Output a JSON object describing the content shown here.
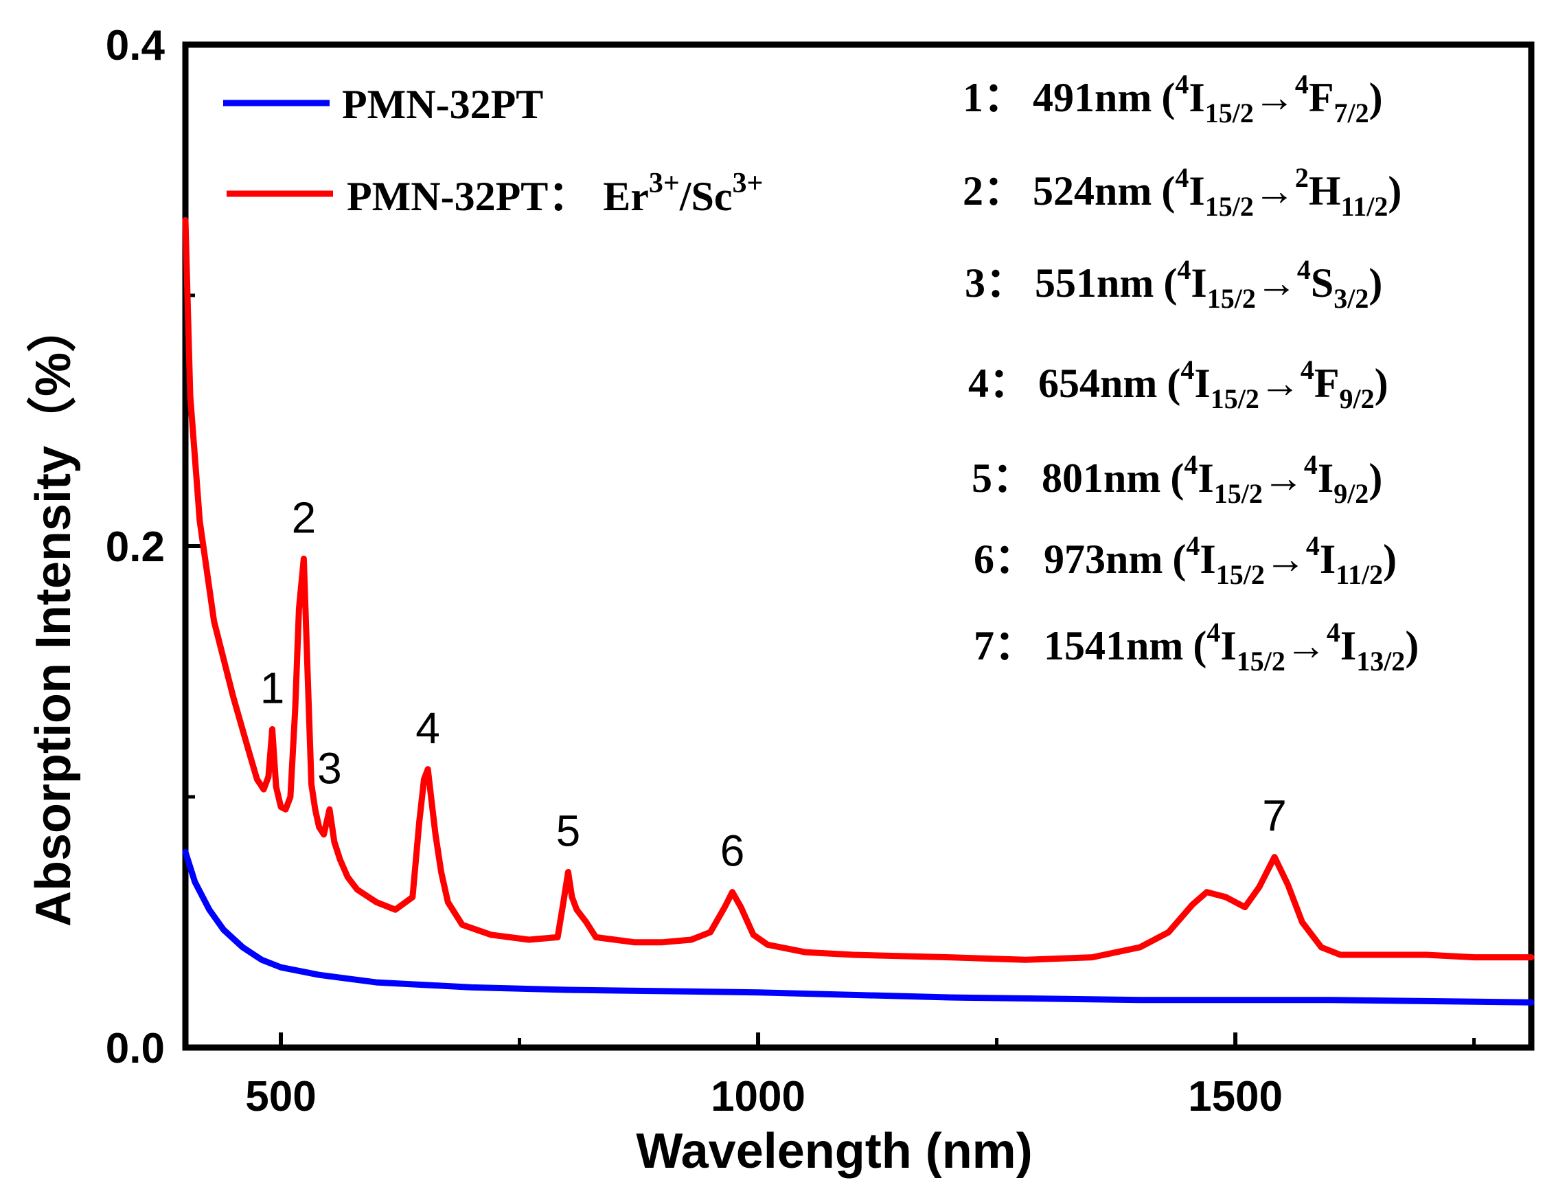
{
  "chart_data": {
    "type": "line",
    "xlabel": "Wavelength (nm)",
    "ylabel": "Absorption Intensity（%）",
    "xlim": [
      400,
      1810
    ],
    "ylim": [
      0,
      0.4
    ],
    "xticks": [
      500,
      1000,
      1500
    ],
    "xticklabels": [
      "500",
      "1000",
      "1500"
    ],
    "yticks": [
      0,
      0.2,
      0.4
    ],
    "yticklabels": [
      "0.0",
      "0.2",
      "0.4"
    ],
    "grid": false,
    "legend_position": "top-left",
    "series": [
      {
        "name": "PMN-32PT",
        "color": "#0000ff",
        "x": [
          400,
          410,
          425,
          440,
          460,
          480,
          500,
          540,
          600,
          700,
          800,
          1000,
          1200,
          1400,
          1600,
          1810
        ],
        "y": [
          0.078,
          0.066,
          0.055,
          0.047,
          0.04,
          0.035,
          0.032,
          0.029,
          0.026,
          0.024,
          0.023,
          0.022,
          0.02,
          0.019,
          0.019,
          0.018
        ]
      },
      {
        "name": "PMN-32PT：Er3+/Sc3+",
        "color": "#ff0000",
        "x": [
          400,
          405,
          415,
          430,
          450,
          465,
          475,
          482,
          487,
          491,
          495,
          500,
          505,
          510,
          515,
          519,
          524,
          528,
          532,
          536,
          540,
          545,
          551,
          556,
          562,
          570,
          580,
          600,
          620,
          638,
          645,
          650,
          654,
          658,
          662,
          668,
          675,
          690,
          720,
          760,
          790,
          796,
          801,
          805,
          810,
          820,
          830,
          850,
          870,
          900,
          930,
          950,
          965,
          973,
          982,
          995,
          1010,
          1050,
          1100,
          1200,
          1280,
          1350,
          1400,
          1430,
          1455,
          1470,
          1480,
          1490,
          1500,
          1510,
          1525,
          1541,
          1555,
          1570,
          1590,
          1610,
          1650,
          1700,
          1750,
          1810
        ],
        "y": [
          0.33,
          0.26,
          0.21,
          0.17,
          0.14,
          0.12,
          0.107,
          0.103,
          0.108,
          0.127,
          0.104,
          0.096,
          0.095,
          0.1,
          0.135,
          0.175,
          0.195,
          0.15,
          0.105,
          0.095,
          0.088,
          0.085,
          0.095,
          0.082,
          0.075,
          0.068,
          0.063,
          0.058,
          0.055,
          0.06,
          0.09,
          0.107,
          0.111,
          0.098,
          0.085,
          0.07,
          0.058,
          0.049,
          0.045,
          0.043,
          0.044,
          0.058,
          0.07,
          0.06,
          0.055,
          0.05,
          0.044,
          0.043,
          0.042,
          0.042,
          0.043,
          0.046,
          0.056,
          0.062,
          0.056,
          0.045,
          0.041,
          0.038,
          0.037,
          0.036,
          0.035,
          0.036,
          0.04,
          0.046,
          0.057,
          0.062,
          0.061,
          0.06,
          0.058,
          0.056,
          0.064,
          0.076,
          0.065,
          0.05,
          0.04,
          0.037,
          0.037,
          0.037,
          0.036,
          0.036
        ]
      }
    ],
    "peak_labels": [
      {
        "text": "1",
        "x": 491,
        "y": 0.127
      },
      {
        "text": "2",
        "x": 524,
        "y": 0.195
      },
      {
        "text": "3",
        "x": 551,
        "y": 0.095
      },
      {
        "text": "4",
        "x": 654,
        "y": 0.111
      },
      {
        "text": "5",
        "x": 801,
        "y": 0.07
      },
      {
        "text": "6",
        "x": 973,
        "y": 0.062
      },
      {
        "text": "7",
        "x": 1541,
        "y": 0.076
      }
    ],
    "annotations": [
      {
        "index": "1：",
        "wavelength": "491nm",
        "lower": "4",
        "from": "I",
        "from_sub": "15/2",
        "upper": "4",
        "to": "F",
        "to_sub": "7/2"
      },
      {
        "index": "2：",
        "wavelength": "524nm",
        "lower": "4",
        "from": "I",
        "from_sub": "15/2",
        "upper": "2",
        "to": "H",
        "to_sub": "11/2"
      },
      {
        "index": "3：",
        "wavelength": "551nm",
        "lower": "4",
        "from": "I",
        "from_sub": "15/2",
        "upper": "4",
        "to": "S",
        "to_sub": "3/2"
      },
      {
        "index": "4：",
        "wavelength": "654nm",
        "lower": "4",
        "from": "I",
        "from_sub": "15/2",
        "upper": "4",
        "to": "F",
        "to_sub": "9/2"
      },
      {
        "index": "5：",
        "wavelength": "801nm",
        "lower": "4",
        "from": "I",
        "from_sub": "15/2",
        "upper": "4",
        "to": "I",
        "to_sub": "9/2"
      },
      {
        "index": "6：",
        "wavelength": "973nm",
        "lower": "4",
        "from": "I",
        "from_sub": "15/2",
        "upper": "4",
        "to": "I",
        "to_sub": "11/2"
      },
      {
        "index": "7：",
        "wavelength": "1541nm",
        "lower": "4",
        "from": "I",
        "from_sub": "15/2",
        "upper": "4",
        "to": "I",
        "to_sub": "13/2"
      }
    ]
  },
  "legend": {
    "item1": "PMN-32PT",
    "item2_prefix": "PMN-32PT：",
    "item2_er": "Er",
    "item2_er_sup": "3+",
    "item2_sc": "/Sc",
    "item2_sc_sup": "3+"
  }
}
